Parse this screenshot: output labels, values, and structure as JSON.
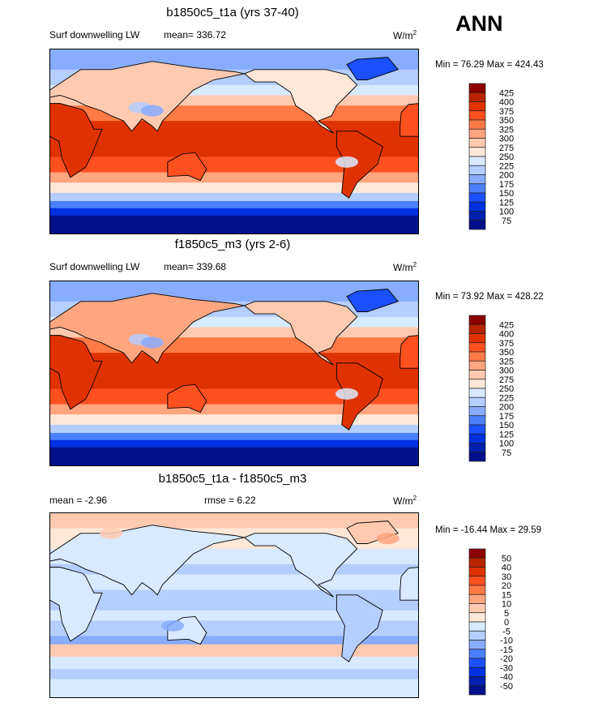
{
  "season": "ANN",
  "units_base": "W/m",
  "units_exp": "2",
  "panels": [
    {
      "title": "b1850c5_t1a (yrs 37-40)",
      "left": "Surf downwelling LW",
      "center": "mean= 336.72",
      "minmax": "Min =  76.29 Max = 424.43",
      "levels": [
        "425",
        "400",
        "375",
        "350",
        "325",
        "300",
        "275",
        "250",
        "225",
        "200",
        "175",
        "150",
        "125",
        "100",
        "75"
      ]
    },
    {
      "title": "f1850c5_m3 (yrs 2-6)",
      "left": "Surf downwelling LW",
      "center": "mean= 339.68",
      "minmax": "Min =  73.92 Max = 428.22",
      "levels": [
        "425",
        "400",
        "375",
        "350",
        "325",
        "300",
        "275",
        "250",
        "225",
        "200",
        "175",
        "150",
        "125",
        "100",
        "75"
      ]
    },
    {
      "title": "b1850c5_t1a - f1850c5_m3",
      "left": "mean =  -2.96",
      "center": "rmse =   6.22",
      "minmax": "Min = -16.44 Max =  29.59",
      "levels": [
        "50",
        "40",
        "30",
        "20",
        "15",
        "10",
        "5",
        "0",
        "-5",
        "-10",
        "-15",
        "-20",
        "-30",
        "-40",
        "-50"
      ]
    }
  ],
  "palette": [
    "#8c0000",
    "#b82300",
    "#e03200",
    "#ff5020",
    "#ff7a45",
    "#ffa57f",
    "#ffcab0",
    "#ffe8d8",
    "#d8eaff",
    "#b4ceff",
    "#88acff",
    "#4a80ff",
    "#1a50ff",
    "#0030e0",
    "#0020b0",
    "#00108a"
  ]
}
